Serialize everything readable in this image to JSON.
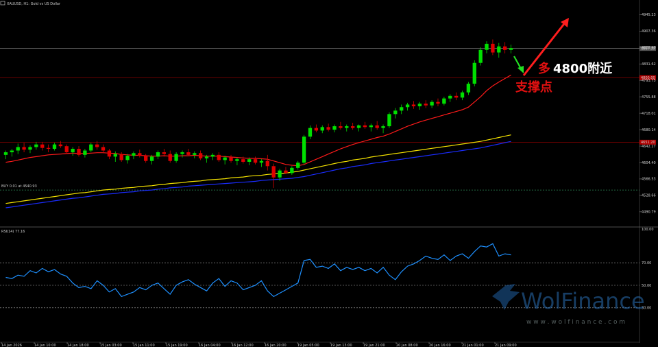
{
  "header": {
    "symbol_label": "XAUUSD, H1:  Gold vs US Dollar"
  },
  "order_line_label": "BUY 0.01 at 4540.93",
  "rsi_label": "RSI(14) 77.16",
  "annotation": {
    "line1": "多",
    "line1_bold": "4800附近",
    "line2": "支撑点"
  },
  "watermark": {
    "brand": "WolFinance",
    "url": "w w w . w o l f i n a n c e . c o m"
  },
  "colors": {
    "background": "#000000",
    "bull_candle": "#00e000",
    "bear_candle": "#e00000",
    "ma_fast": "#ff1a1a",
    "ma_mid": "#f5e300",
    "ma_slow": "#1a2cff",
    "rsi_line": "#1e90ff",
    "arrow_red": "#ff1e1e",
    "arrow_green": "#22e022",
    "annotation_text": "#e01010"
  },
  "chart_data": [
    {
      "type": "candlestick",
      "title": "XAUUSD, H1: Gold vs US Dollar",
      "timeframe": "H1",
      "ylim": [
        4470,
        4960
      ],
      "y_ticks": [
        "4945.23",
        "4907.36",
        "4869.49",
        "4831.62",
        "4793.75",
        "4755.88",
        "4718.01",
        "4680.14",
        "4642.27",
        "4604.40",
        "4566.53",
        "4528.66",
        "4490.79"
      ],
      "x_ticks": [
        "14 Jan 2026",
        "14 Jan 10:00",
        "14 Jan 18:00",
        "15 Jan 03:00",
        "15 Jan 11:00",
        "15 Jan 19:00",
        "16 Jan 04:00",
        "16 Jan 12:00",
        "16 Jan 20:00",
        "19 Jan 05:00",
        "19 Jan 13:00",
        "19 Jan 21:00",
        "20 Jan 08:00",
        "20 Jan 16:00",
        "21 Jan 01:00",
        "21 Jan 09:00"
      ],
      "price_lines": [
        {
          "name": "bid",
          "value": 4867.3,
          "label": "4867.30"
        },
        {
          "name": "support",
          "value": 4800.0,
          "label": "4800.00"
        },
        {
          "name": "level",
          "value": 4651.2,
          "label": "4651.20"
        },
        {
          "name": "order",
          "value": 4540.93
        }
      ],
      "candles": [
        [
          4622,
          4632,
          4612,
          4628
        ],
        [
          4628,
          4636,
          4618,
          4632
        ],
        [
          4632,
          4648,
          4624,
          4640
        ],
        [
          4640,
          4650,
          4628,
          4634
        ],
        [
          4634,
          4644,
          4626,
          4640
        ],
        [
          4640,
          4652,
          4634,
          4646
        ],
        [
          4646,
          4652,
          4632,
          4638
        ],
        [
          4638,
          4646,
          4628,
          4636
        ],
        [
          4636,
          4650,
          4632,
          4646
        ],
        [
          4646,
          4654,
          4638,
          4642
        ],
        [
          4642,
          4646,
          4624,
          4628
        ],
        [
          4628,
          4640,
          4620,
          4636
        ],
        [
          4636,
          4642,
          4618,
          4622
        ],
        [
          4622,
          4636,
          4616,
          4632
        ],
        [
          4632,
          4650,
          4628,
          4646
        ],
        [
          4646,
          4654,
          4634,
          4640
        ],
        [
          4640,
          4646,
          4626,
          4632
        ],
        [
          4632,
          4636,
          4612,
          4618
        ],
        [
          4618,
          4630,
          4606,
          4624
        ],
        [
          4624,
          4628,
          4606,
          4610
        ],
        [
          4610,
          4624,
          4602,
          4620
        ],
        [
          4620,
          4630,
          4612,
          4626
        ],
        [
          4626,
          4634,
          4616,
          4620
        ],
        [
          4620,
          4624,
          4604,
          4608
        ],
        [
          4608,
          4622,
          4600,
          4618
        ],
        [
          4618,
          4632,
          4612,
          4628
        ],
        [
          4628,
          4636,
          4618,
          4624
        ],
        [
          4624,
          4632,
          4604,
          4608
        ],
        [
          4608,
          4628,
          4604,
          4624
        ],
        [
          4624,
          4632,
          4616,
          4628
        ],
        [
          4628,
          4636,
          4620,
          4622
        ],
        [
          4622,
          4630,
          4614,
          4626
        ],
        [
          4626,
          4632,
          4610,
          4614
        ],
        [
          4614,
          4622,
          4604,
          4618
        ],
        [
          4618,
          4626,
          4610,
          4622
        ],
        [
          4622,
          4628,
          4606,
          4610
        ],
        [
          4610,
          4620,
          4600,
          4616
        ],
        [
          4616,
          4622,
          4604,
          4608
        ],
        [
          4608,
          4616,
          4598,
          4612
        ],
        [
          4612,
          4618,
          4602,
          4606
        ],
        [
          4606,
          4616,
          4598,
          4612
        ],
        [
          4612,
          4618,
          4600,
          4604
        ],
        [
          4604,
          4612,
          4594,
          4608
        ],
        [
          4608,
          4622,
          4586,
          4596
        ],
        [
          4596,
          4602,
          4546,
          4570
        ],
        [
          4570,
          4590,
          4562,
          4586
        ],
        [
          4586,
          4594,
          4578,
          4580
        ],
        [
          4580,
          4596,
          4576,
          4592
        ],
        [
          4592,
          4608,
          4588,
          4604
        ],
        [
          4604,
          4668,
          4600,
          4664
        ],
        [
          4664,
          4690,
          4658,
          4684
        ],
        [
          4684,
          4692,
          4674,
          4678
        ],
        [
          4678,
          4690,
          4672,
          4686
        ],
        [
          4686,
          4694,
          4676,
          4680
        ],
        [
          4680,
          4692,
          4674,
          4688
        ],
        [
          4688,
          4698,
          4680,
          4684
        ],
        [
          4684,
          4692,
          4676,
          4688
        ],
        [
          4688,
          4696,
          4680,
          4684
        ],
        [
          4684,
          4692,
          4676,
          4690
        ],
        [
          4690,
          4698,
          4682,
          4686
        ],
        [
          4686,
          4694,
          4676,
          4690
        ],
        [
          4690,
          4700,
          4680,
          4684
        ],
        [
          4684,
          4692,
          4672,
          4688
        ],
        [
          4688,
          4720,
          4684,
          4716
        ],
        [
          4716,
          4730,
          4706,
          4724
        ],
        [
          4724,
          4738,
          4716,
          4732
        ],
        [
          4732,
          4742,
          4724,
          4738
        ],
        [
          4738,
          4746,
          4728,
          4734
        ],
        [
          4734,
          4744,
          4726,
          4740
        ],
        [
          4740,
          4748,
          4730,
          4736
        ],
        [
          4736,
          4748,
          4730,
          4744
        ],
        [
          4744,
          4752,
          4734,
          4740
        ],
        [
          4740,
          4756,
          4736,
          4752
        ],
        [
          4752,
          4762,
          4744,
          4758
        ],
        [
          4758,
          4766,
          4748,
          4754
        ],
        [
          4754,
          4770,
          4748,
          4766
        ],
        [
          4766,
          4790,
          4760,
          4786
        ],
        [
          4786,
          4840,
          4780,
          4834
        ],
        [
          4834,
          4870,
          4828,
          4864
        ],
        [
          4864,
          4884,
          4856,
          4878
        ],
        [
          4878,
          4888,
          4852,
          4858
        ],
        [
          4858,
          4880,
          4846,
          4872
        ],
        [
          4872,
          4882,
          4856,
          4864
        ],
        [
          4864,
          4876,
          4856,
          4868
        ]
      ],
      "series": [
        {
          "name": "MA fast (red)",
          "values": [
            4605,
            4607,
            4610,
            4613,
            4616,
            4618,
            4620,
            4622,
            4623,
            4624,
            4625,
            4626,
            4625,
            4625,
            4626,
            4627,
            4627,
            4626,
            4625,
            4623,
            4622,
            4621,
            4621,
            4620,
            4619,
            4619,
            4620,
            4619,
            4619,
            4620,
            4620,
            4621,
            4620,
            4619,
            4619,
            4619,
            4618,
            4617,
            4616,
            4615,
            4614,
            4614,
            4613,
            4612,
            4608,
            4604,
            4600,
            4598,
            4597,
            4600,
            4606,
            4612,
            4618,
            4624,
            4630,
            4636,
            4641,
            4646,
            4650,
            4654,
            4658,
            4662,
            4665,
            4670,
            4676,
            4682,
            4688,
            4693,
            4698,
            4702,
            4706,
            4710,
            4714,
            4718,
            4722,
            4726,
            4732,
            4744,
            4756,
            4770,
            4781,
            4790,
            4798,
            4806
          ]
        },
        {
          "name": "MA mid (yellow)",
          "values": [
            4510,
            4512,
            4514,
            4516,
            4518,
            4520,
            4522,
            4524,
            4526,
            4528,
            4530,
            4532,
            4534,
            4535,
            4537,
            4539,
            4541,
            4542,
            4543,
            4545,
            4546,
            4547,
            4549,
            4550,
            4551,
            4553,
            4554,
            4556,
            4557,
            4558,
            4560,
            4561,
            4562,
            4564,
            4565,
            4566,
            4567,
            4569,
            4570,
            4571,
            4573,
            4574,
            4575,
            4577,
            4578,
            4579,
            4580,
            4582,
            4584,
            4587,
            4590,
            4593,
            4596,
            4599,
            4602,
            4605,
            4607,
            4610,
            4612,
            4614,
            4617,
            4619,
            4621,
            4623,
            4625,
            4627,
            4629,
            4631,
            4633,
            4635,
            4637,
            4639,
            4641,
            4643,
            4645,
            4647,
            4649,
            4651,
            4653,
            4656,
            4659,
            4662,
            4665,
            4668
          ]
        },
        {
          "name": "MA slow (blue)",
          "values": [
            4500,
            4502,
            4504,
            4506,
            4508,
            4510,
            4512,
            4514,
            4516,
            4518,
            4520,
            4522,
            4523,
            4525,
            4527,
            4529,
            4531,
            4532,
            4533,
            4535,
            4536,
            4537,
            4539,
            4540,
            4541,
            4543,
            4544,
            4546,
            4547,
            4548,
            4550,
            4551,
            4552,
            4553,
            4554,
            4555,
            4556,
            4557,
            4558,
            4559,
            4560,
            4561,
            4563,
            4564,
            4565,
            4566,
            4567,
            4568,
            4570,
            4572,
            4575,
            4578,
            4581,
            4584,
            4587,
            4590,
            4592,
            4595,
            4597,
            4599,
            4602,
            4604,
            4606,
            4608,
            4610,
            4612,
            4614,
            4616,
            4618,
            4620,
            4622,
            4624,
            4626,
            4628,
            4630,
            4632,
            4634,
            4636,
            4638,
            4641,
            4644,
            4647,
            4650,
            4653
          ]
        }
      ]
    },
    {
      "type": "line",
      "title": "RSI(14) 77.16",
      "ylim": [
        0,
        100
      ],
      "y_ticks": [
        "100.00",
        "70.00",
        "50.00",
        "30.00"
      ],
      "levels": [
        70,
        50,
        30
      ],
      "series": [
        {
          "name": "RSI(14)",
          "values": [
            57,
            56,
            59,
            58,
            63,
            61,
            65,
            62,
            64,
            60,
            58,
            52,
            48,
            49,
            47,
            54,
            50,
            44,
            47,
            40,
            42,
            44,
            48,
            46,
            50,
            52,
            47,
            42,
            50,
            53,
            55,
            51,
            48,
            45,
            52,
            56,
            49,
            54,
            52,
            46,
            48,
            50,
            54,
            45,
            40,
            43,
            46,
            49,
            52,
            72,
            73,
            66,
            67,
            65,
            69,
            63,
            66,
            64,
            66,
            63,
            65,
            61,
            66,
            59,
            55,
            62,
            67,
            69,
            72,
            76,
            74,
            73,
            77,
            72,
            76,
            78,
            74,
            80,
            85,
            84,
            87,
            76,
            78,
            77
          ]
        }
      ]
    }
  ]
}
